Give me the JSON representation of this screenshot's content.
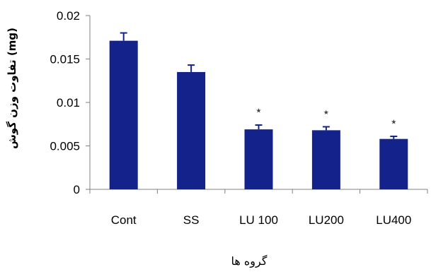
{
  "chart_data": {
    "type": "bar",
    "categories": [
      "Cont",
      "SS",
      "LU 100",
      "LU200",
      "LU400"
    ],
    "values": [
      0.0171,
      0.0135,
      0.0069,
      0.0068,
      0.0058
    ],
    "errors": [
      0.0009,
      0.0008,
      0.0005,
      0.0004,
      0.0003
    ],
    "significance": [
      "",
      "",
      "٭",
      "٭",
      "٭"
    ],
    "title": "",
    "xlabel": "گروه ها",
    "ylabel": "تفاوت وزن گوش (mg)",
    "ylim": [
      0,
      0.02
    ],
    "yticks": [
      0,
      0.005,
      0.01,
      0.015,
      0.02
    ],
    "ytick_labels": [
      "0",
      "0.005",
      "0.01",
      "0.015",
      "0.02"
    ],
    "grid": false,
    "legend": "none",
    "bar_color": "#14238c",
    "axis_color": "#808080"
  }
}
